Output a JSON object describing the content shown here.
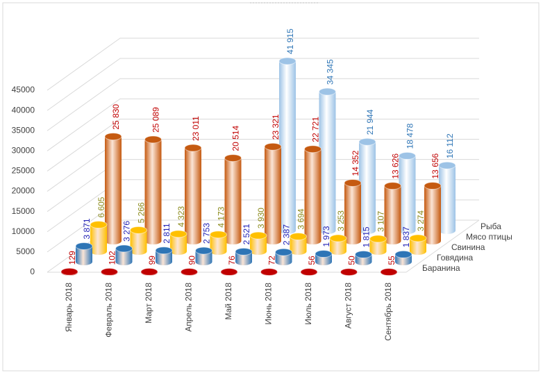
{
  "chart_data": {
    "type": "bar3d",
    "categories": [
      "Январь 2018",
      "Февраль 2018",
      "Март 2018",
      "Апрель 2018",
      "Май 2018",
      "Июнь 2018",
      "Июль 2018",
      "Август 2018",
      "Сентябрь 2018"
    ],
    "series": [
      {
        "name": "Баранина",
        "color": "#c00000",
        "label_color": "#c00000",
        "values": [
          129,
          102,
          99,
          90,
          76,
          72,
          56,
          50,
          55
        ],
        "value_labels": [
          "129",
          "102",
          "99",
          "90",
          "76",
          "72",
          "56",
          "50",
          "55"
        ]
      },
      {
        "name": "Говядина",
        "color": "#2e75b6",
        "label_color": "#1f1fb4",
        "values": [
          3871,
          3276,
          2811,
          2753,
          2521,
          2387,
          1973,
          1815,
          1837
        ],
        "value_labels": [
          "3 871",
          "3 276",
          "2 811",
          "2 753",
          "2 521",
          "2 387",
          "1 973",
          "1 815",
          "1 837"
        ]
      },
      {
        "name": "Свинина",
        "color": "#ffc000",
        "label_color": "#8a8a1a",
        "values": [
          6605,
          5266,
          4323,
          4173,
          3930,
          3694,
          3253,
          3107,
          3274
        ],
        "value_labels": [
          "6 605",
          "5 266",
          "4 323",
          "4 173",
          "3 930",
          "3 694",
          "3 253",
          "3 107",
          "3 274"
        ]
      },
      {
        "name": "Мясо птицы",
        "color": "#c55a11",
        "label_color": "#c00000",
        "values": [
          25830,
          25089,
          23011,
          20514,
          23321,
          22721,
          14352,
          13626,
          13656
        ],
        "value_labels": [
          "25 830",
          "25 089",
          "23 011",
          "20 514",
          "23 321",
          "22 721",
          "14 352",
          "13 626",
          "13 656"
        ]
      },
      {
        "name": "Рыба",
        "color": "#9dc3e6",
        "label_color": "#2e75b6",
        "values": [
          null,
          null,
          null,
          null,
          41915,
          34345,
          21944,
          18478,
          16112
        ],
        "value_labels": [
          null,
          null,
          null,
          null,
          "41 915",
          "34 345",
          "21 944",
          "18 478",
          "16 112"
        ]
      }
    ],
    "ylim": [
      0,
      45000
    ],
    "yticks": [
      0,
      5000,
      10000,
      15000,
      20000,
      25000,
      30000,
      35000,
      40000,
      45000
    ],
    "grid": true
  }
}
